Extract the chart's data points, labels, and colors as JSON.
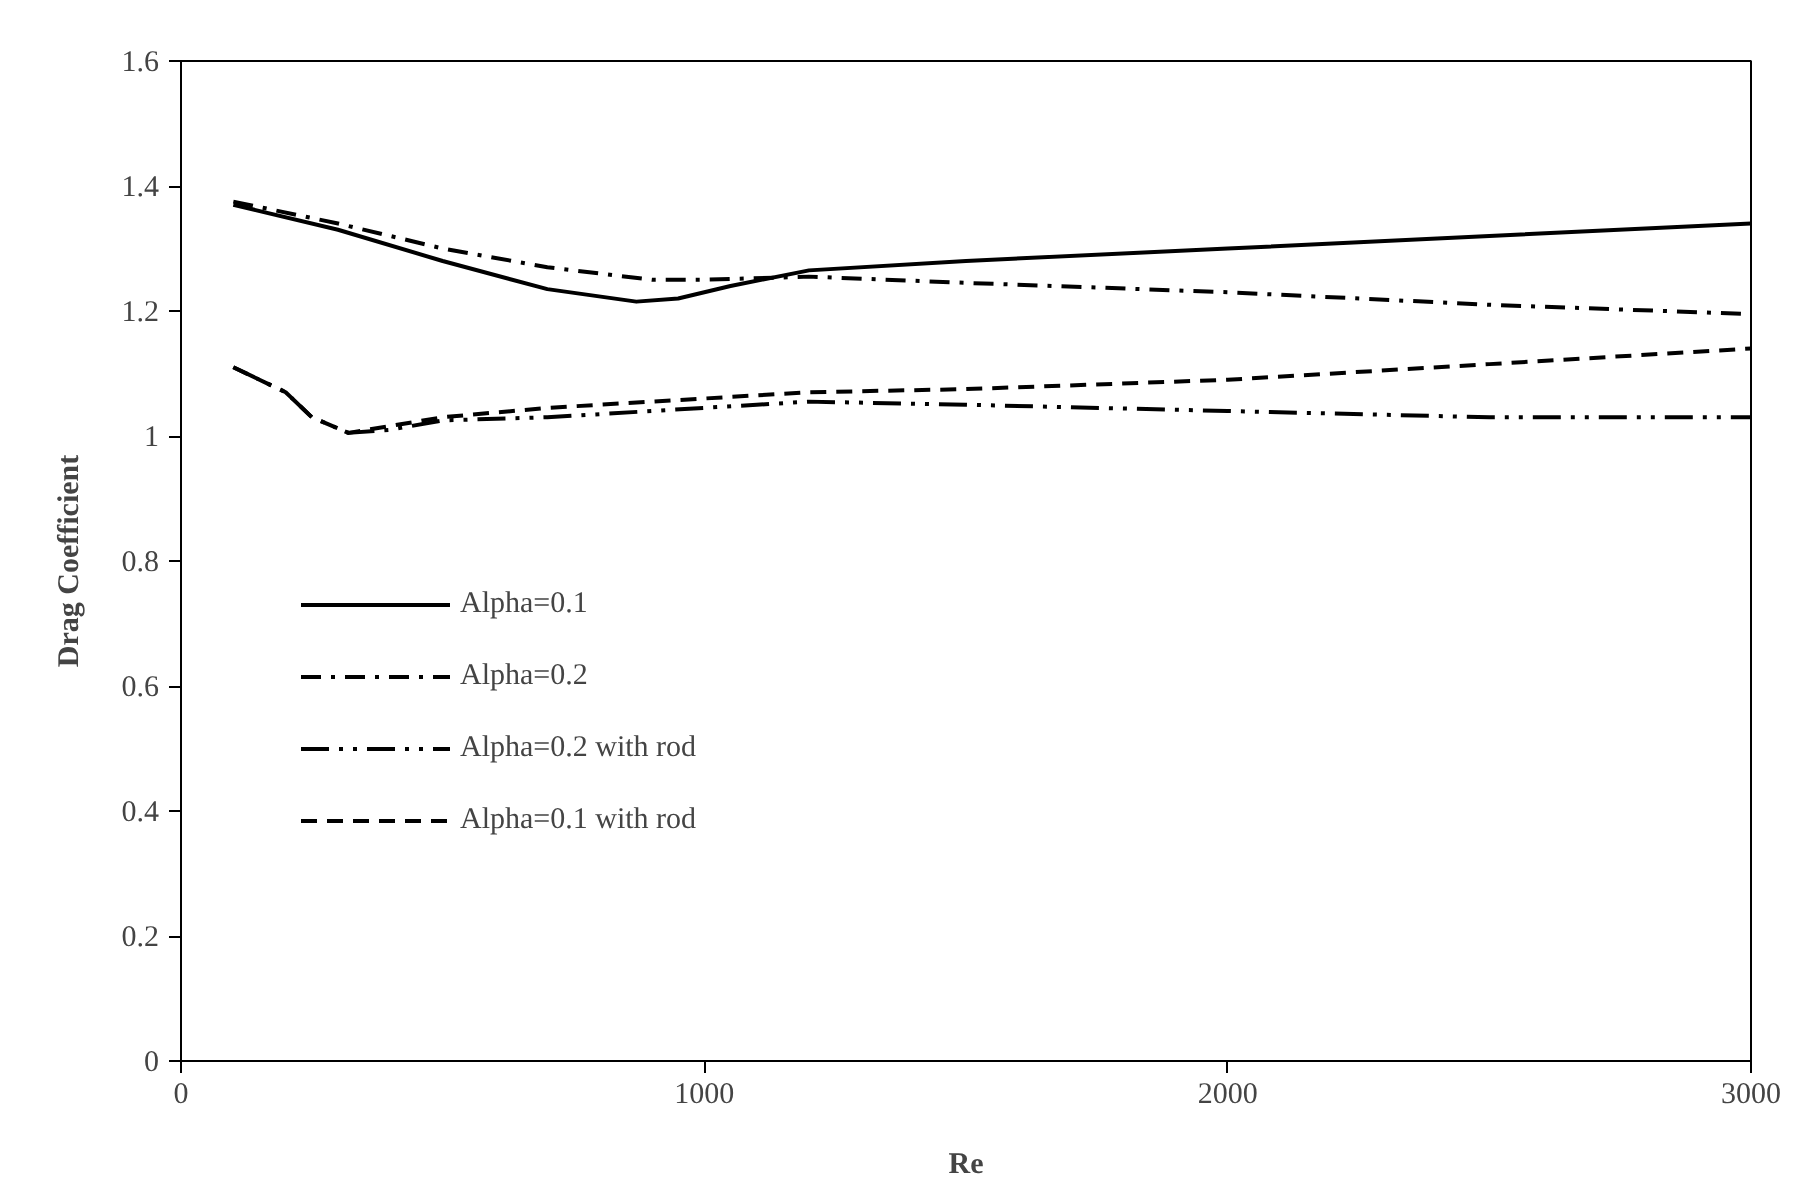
{
  "chart_data": {
    "type": "line",
    "xlabel": "Re",
    "ylabel": "Drag Coefficient",
    "xlim": [
      0,
      3000
    ],
    "xticks": [
      0,
      1000,
      2000,
      3000
    ],
    "ylim": [
      0,
      1.6
    ],
    "yticks": [
      {
        "value": 0,
        "label": "0"
      },
      0.2,
      0.4,
      0.6,
      0.8,
      {
        "value": 1,
        "label": "1"
      },
      1.2,
      1.4,
      1.6
    ],
    "grid": false,
    "legend": "left",
    "marker": "none",
    "series": [
      {
        "name": "Alpha=0.1",
        "color": "#000000",
        "line_style": "solid",
        "x": [
          100,
          300,
          500,
          700,
          870,
          950,
          1050,
          1200,
          1500,
          2000,
          2500,
          3000
        ],
        "values": [
          1.37,
          1.33,
          1.28,
          1.235,
          1.215,
          1.22,
          1.24,
          1.265,
          1.28,
          1.3,
          1.32,
          1.34
        ]
      },
      {
        "name": "Alpha=0.2",
        "color": "#000000",
        "line_style": "dashdot",
        "x": [
          100,
          300,
          500,
          700,
          900,
          1000,
          1200,
          1500,
          2000,
          2500,
          3000
        ],
        "values": [
          1.375,
          1.34,
          1.3,
          1.27,
          1.25,
          1.25,
          1.255,
          1.245,
          1.23,
          1.21,
          1.195
        ]
      },
      {
        "name": "Alpha=0.2 with rod",
        "color": "#000000",
        "line_style": "dashdotdot",
        "x": [
          100,
          200,
          250,
          320,
          400,
          500,
          700,
          900,
          1100,
          1200,
          1500,
          2000,
          2500,
          3000
        ],
        "values": [
          1.11,
          1.07,
          1.03,
          1.005,
          1.01,
          1.025,
          1.03,
          1.04,
          1.05,
          1.055,
          1.05,
          1.04,
          1.03,
          1.03
        ]
      },
      {
        "name": "Alpha=0.1 with rod",
        "color": "#000000",
        "line_style": "dashed",
        "x": [
          100,
          200,
          250,
          320,
          500,
          700,
          900,
          1200,
          1500,
          2000,
          2500,
          3000
        ],
        "values": [
          1.11,
          1.07,
          1.03,
          1.005,
          1.03,
          1.045,
          1.055,
          1.07,
          1.075,
          1.09,
          1.115,
          1.14
        ]
      }
    ]
  }
}
